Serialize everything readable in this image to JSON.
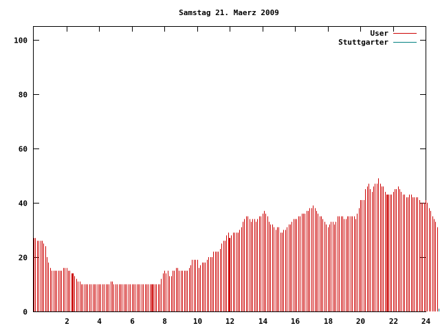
{
  "chart_data": {
    "type": "bar",
    "title": "Samstag 21. Maerz 2009",
    "xlabel": "",
    "ylabel": "",
    "xlim": [
      0,
      24
    ],
    "ylim": [
      0,
      105
    ],
    "xticks": [
      2,
      4,
      6,
      8,
      10,
      12,
      14,
      16,
      18,
      20,
      22,
      24
    ],
    "yticks": [
      0,
      20,
      40,
      60,
      80,
      100
    ],
    "grid": false,
    "legend_position": "top-right",
    "colors": {
      "User": "#cc0000",
      "Stuttgarter": "#008080"
    },
    "series": [
      {
        "name": "User",
        "x_start": 0,
        "x_step": 0.1,
        "values": [
          27,
          27,
          26,
          26,
          26,
          26,
          25,
          24,
          20,
          18,
          16,
          15,
          15,
          15,
          15,
          15,
          15,
          15,
          16,
          16,
          16,
          15,
          15,
          14,
          14,
          13,
          12,
          11,
          11,
          10,
          10,
          10,
          10,
          10,
          10,
          10,
          10,
          10,
          10,
          10,
          10,
          10,
          10,
          10,
          10,
          10,
          10,
          11,
          11,
          10,
          10,
          10,
          10,
          10,
          10,
          10,
          10,
          10,
          10,
          10,
          10,
          10,
          10,
          10,
          10,
          10,
          10,
          10,
          10,
          10,
          10,
          10,
          10,
          10,
          10,
          10,
          10,
          10,
          12,
          14,
          15,
          14,
          15,
          13,
          13,
          15,
          15,
          16,
          16,
          15,
          15,
          15,
          15,
          15,
          15,
          16,
          17,
          19,
          19,
          19,
          19,
          16,
          17,
          18,
          18,
          18,
          19,
          20,
          20,
          20,
          22,
          22,
          22,
          22,
          23,
          25,
          26,
          26,
          28,
          29,
          27,
          28,
          29,
          29,
          29,
          29,
          30,
          31,
          33,
          34,
          35,
          35,
          34,
          33,
          34,
          34,
          33,
          34,
          35,
          35,
          36,
          37,
          36,
          35,
          33,
          32,
          32,
          31,
          30,
          31,
          31,
          29,
          29,
          30,
          30,
          31,
          32,
          32,
          33,
          34,
          34,
          34,
          35,
          35,
          36,
          36,
          36,
          37,
          37,
          38,
          38,
          39,
          38,
          37,
          36,
          35,
          35,
          34,
          33,
          32,
          31,
          32,
          33,
          33,
          32,
          33,
          35,
          35,
          35,
          35,
          34,
          34,
          35,
          35,
          35,
          35,
          35,
          34,
          36,
          38,
          41,
          41,
          41,
          45,
          46,
          47,
          45,
          44,
          46,
          47,
          47,
          49,
          47,
          46,
          46,
          44,
          43,
          43,
          43,
          43,
          44,
          45,
          45,
          46,
          45,
          44,
          43,
          43,
          42,
          42,
          43,
          43,
          42,
          42,
          42,
          42,
          41,
          40,
          40,
          40,
          41,
          40,
          38,
          37,
          35,
          34,
          33,
          31
        ]
      },
      {
        "name": "Stuttgarter",
        "x_start": 0,
        "x_step": 0.1,
        "values": [
          1,
          1,
          1,
          1,
          1,
          1,
          1,
          1,
          1,
          1,
          1,
          1,
          1,
          1,
          1,
          1,
          1,
          1,
          1,
          1,
          1,
          1,
          1,
          1,
          1,
          1,
          1,
          1,
          1,
          1,
          1,
          1,
          1,
          1,
          1,
          1,
          1,
          1,
          1,
          1,
          1,
          1,
          1,
          1,
          1,
          1,
          1,
          1,
          1,
          1,
          1,
          1,
          1,
          1,
          1,
          1,
          1,
          1,
          1,
          1,
          1,
          1,
          1,
          1,
          1,
          1,
          1,
          1,
          1,
          1,
          1,
          1,
          1,
          1,
          1,
          1,
          1,
          1,
          1,
          1,
          1,
          1,
          1,
          1,
          1,
          1,
          1,
          1,
          1,
          1,
          1,
          1,
          1,
          1,
          1,
          1,
          1,
          1,
          1,
          1,
          1,
          1,
          1,
          1,
          1,
          1,
          1,
          1,
          1,
          1,
          1,
          1,
          1,
          1,
          1,
          1,
          1,
          1,
          1,
          1,
          1,
          1,
          1,
          1,
          1,
          1,
          1,
          1,
          1,
          1,
          1,
          1,
          1,
          1,
          1,
          1,
          1,
          1,
          1,
          1,
          1,
          1,
          1,
          1,
          1,
          1,
          1,
          1,
          1,
          1,
          1,
          1,
          1,
          1,
          1,
          1,
          1,
          1,
          1,
          1,
          1,
          1,
          1,
          1,
          1,
          1,
          1,
          1,
          1,
          1,
          1,
          1,
          1,
          1,
          1,
          1,
          1,
          1,
          1,
          1,
          1,
          1,
          1,
          1,
          1,
          1,
          1,
          1,
          1,
          1,
          1,
          1,
          1,
          1,
          1,
          1,
          1,
          1,
          1,
          1,
          1,
          1,
          1,
          1,
          1,
          1,
          1,
          1,
          1,
          1,
          1,
          1,
          1,
          1,
          1,
          1,
          1,
          1,
          1,
          1,
          1,
          1,
          1,
          1,
          1,
          1,
          1,
          1,
          1,
          1,
          1,
          1,
          1,
          1,
          1,
          1,
          1,
          1,
          1,
          1,
          1,
          1,
          1,
          1,
          1,
          1,
          1,
          1,
          1,
          1,
          1,
          1,
          1,
          1,
          1,
          1,
          1,
          1,
          1,
          1
        ]
      }
    ],
    "emphasized_x": [
      2.4,
      7.3,
      12.0,
      21.7
    ]
  }
}
